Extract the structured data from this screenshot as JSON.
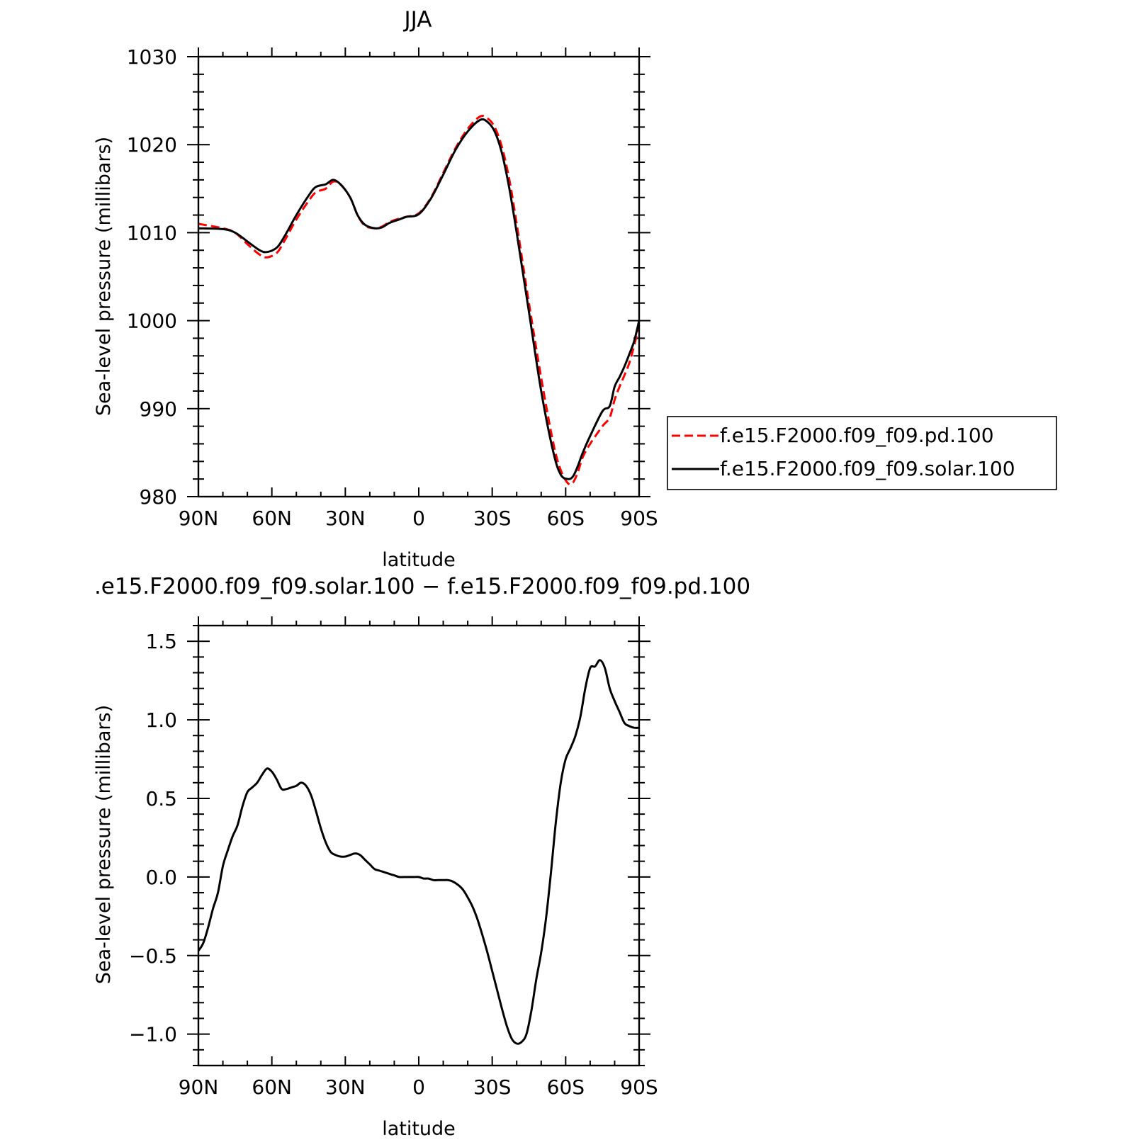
{
  "chart_data": [
    {
      "type": "line",
      "title": "JJA",
      "xlabel": "latitude",
      "ylabel": "Sea-level pressure (millibars)",
      "xlim": [
        90,
        -90
      ],
      "ylim": [
        980,
        1030
      ],
      "x_ticks": [
        90,
        60,
        30,
        0,
        -30,
        -60,
        -90
      ],
      "x_tick_labels": [
        "90N",
        "60N",
        "30N",
        "0",
        "30S",
        "60S",
        "90S"
      ],
      "y_ticks": [
        980,
        990,
        1000,
        1010,
        1020,
        1030
      ],
      "y_tick_labels": [
        "980",
        "990",
        "1000",
        "1010",
        "1020",
        "1030"
      ],
      "grid": false,
      "legend_position": "right",
      "series": [
        {
          "name": "f.e15.F2000.f09_f09.pd.100",
          "color": "#ff0000",
          "dash": "dashed",
          "x": [
            90,
            80,
            75,
            70,
            65,
            62,
            58,
            55,
            50,
            45,
            42,
            38,
            35,
            32,
            28,
            25,
            22,
            18,
            15,
            12,
            8,
            5,
            0,
            -5,
            -10,
            -15,
            -20,
            -25,
            -28,
            -31,
            -34,
            -37,
            -40,
            -45,
            -50,
            -55,
            -58,
            -61,
            -63,
            -65,
            -67,
            -70,
            -75,
            -78,
            -80,
            -82,
            -84,
            -86,
            -88,
            -90
          ],
          "y": [
            1011.0,
            1010.5,
            1010.0,
            1008.7,
            1007.5,
            1007.2,
            1007.7,
            1009.0,
            1011.5,
            1013.6,
            1014.6,
            1015.0,
            1015.8,
            1015.5,
            1014.0,
            1012.0,
            1010.8,
            1010.5,
            1010.7,
            1011.2,
            1011.6,
            1011.8,
            1012.2,
            1014.0,
            1016.8,
            1019.6,
            1021.8,
            1023.2,
            1023.0,
            1022.0,
            1019.7,
            1016.0,
            1011.0,
            1002.0,
            993.5,
            986.0,
            983.0,
            981.5,
            981.6,
            982.8,
            984.5,
            986.0,
            988.0,
            989.0,
            991.0,
            992.5,
            993.8,
            995.2,
            997.2,
            999.5
          ]
        },
        {
          "name": "f.e15.F2000.f09_f09.solar.100",
          "color": "#000000",
          "dash": "solid",
          "x": [
            90,
            80,
            75,
            70,
            65,
            62,
            58,
            55,
            50,
            45,
            42,
            38,
            35,
            32,
            28,
            25,
            22,
            18,
            15,
            12,
            8,
            5,
            0,
            -5,
            -10,
            -15,
            -20,
            -25,
            -28,
            -31,
            -34,
            -37,
            -40,
            -45,
            -50,
            -55,
            -58,
            -61,
            -63,
            -65,
            -67,
            -70,
            -75,
            -78,
            -80,
            -82,
            -84,
            -86,
            -88,
            -90
          ],
          "y": [
            1010.5,
            1010.4,
            1010.0,
            1009.0,
            1008.0,
            1007.8,
            1008.3,
            1009.5,
            1012.0,
            1014.2,
            1015.2,
            1015.5,
            1016.0,
            1015.5,
            1014.0,
            1012.0,
            1010.9,
            1010.5,
            1010.6,
            1011.1,
            1011.5,
            1011.8,
            1012.1,
            1013.9,
            1016.6,
            1019.4,
            1021.5,
            1022.8,
            1022.6,
            1021.5,
            1019.0,
            1015.0,
            1010.0,
            1001.0,
            992.0,
            985.0,
            982.5,
            982.0,
            982.3,
            983.5,
            985.0,
            986.9,
            989.7,
            990.3,
            992.5,
            993.6,
            994.8,
            996.2,
            997.7,
            1000.0
          ]
        }
      ]
    },
    {
      "type": "line",
      "title": ".e15.F2000.f09_f09.solar.100 − f.e15.F2000.f09_f09.pd.100",
      "xlabel": "latitude",
      "ylabel": "Sea-level pressure (millibars)",
      "xlim": [
        90,
        -90
      ],
      "ylim": [
        -1.2,
        1.6
      ],
      "x_ticks": [
        90,
        60,
        30,
        0,
        -30,
        -60,
        -90
      ],
      "x_tick_labels": [
        "90N",
        "60N",
        "30N",
        "0",
        "30S",
        "60S",
        "90S"
      ],
      "y_ticks": [
        -1.0,
        -0.5,
        0.0,
        0.5,
        1.0,
        1.5
      ],
      "y_tick_labels": [
        "−1.0",
        "−0.5",
        "0.0",
        "0.5",
        "1.0",
        "1.5"
      ],
      "grid": false,
      "series": [
        {
          "color": "#000000",
          "dash": "solid",
          "x": [
            90,
            88,
            86,
            84,
            82,
            80,
            78,
            76,
            74,
            72,
            70,
            68,
            66,
            64,
            62,
            60,
            58,
            56,
            54,
            52,
            50,
            48,
            46,
            44,
            42,
            40,
            38,
            36,
            34,
            32,
            30,
            28,
            26,
            24,
            22,
            20,
            18,
            16,
            14,
            12,
            10,
            8,
            6,
            4,
            2,
            0,
            -2,
            -4,
            -6,
            -8,
            -10,
            -12,
            -14,
            -16,
            -18,
            -20,
            -22,
            -24,
            -26,
            -28,
            -30,
            -32,
            -34,
            -36,
            -38,
            -40,
            -42,
            -44,
            -46,
            -48,
            -50,
            -52,
            -54,
            -56,
            -58,
            -60,
            -62,
            -64,
            -66,
            -68,
            -70,
            -72,
            -74,
            -76,
            -78,
            -80,
            -82,
            -84,
            -86,
            -88,
            -90
          ],
          "y": [
            -0.47,
            -0.42,
            -0.32,
            -0.2,
            -0.1,
            0.07,
            0.17,
            0.26,
            0.33,
            0.45,
            0.54,
            0.57,
            0.6,
            0.65,
            0.69,
            0.67,
            0.62,
            0.56,
            0.56,
            0.57,
            0.58,
            0.6,
            0.58,
            0.52,
            0.42,
            0.31,
            0.22,
            0.16,
            0.14,
            0.13,
            0.13,
            0.14,
            0.15,
            0.14,
            0.11,
            0.08,
            0.05,
            0.04,
            0.03,
            0.02,
            0.01,
            0.0,
            0.0,
            0.0,
            0.0,
            0.0,
            -0.01,
            -0.01,
            -0.02,
            -0.02,
            -0.02,
            -0.02,
            -0.03,
            -0.05,
            -0.08,
            -0.13,
            -0.19,
            -0.27,
            -0.37,
            -0.48,
            -0.6,
            -0.72,
            -0.84,
            -0.95,
            -1.03,
            -1.06,
            -1.05,
            -1.0,
            -0.85,
            -0.65,
            -0.48,
            -0.26,
            0.03,
            0.35,
            0.6,
            0.75,
            0.82,
            0.9,
            1.02,
            1.2,
            1.33,
            1.34,
            1.38,
            1.33,
            1.2,
            1.12,
            1.05,
            0.98,
            0.96,
            0.95,
            0.95
          ]
        }
      ]
    }
  ]
}
